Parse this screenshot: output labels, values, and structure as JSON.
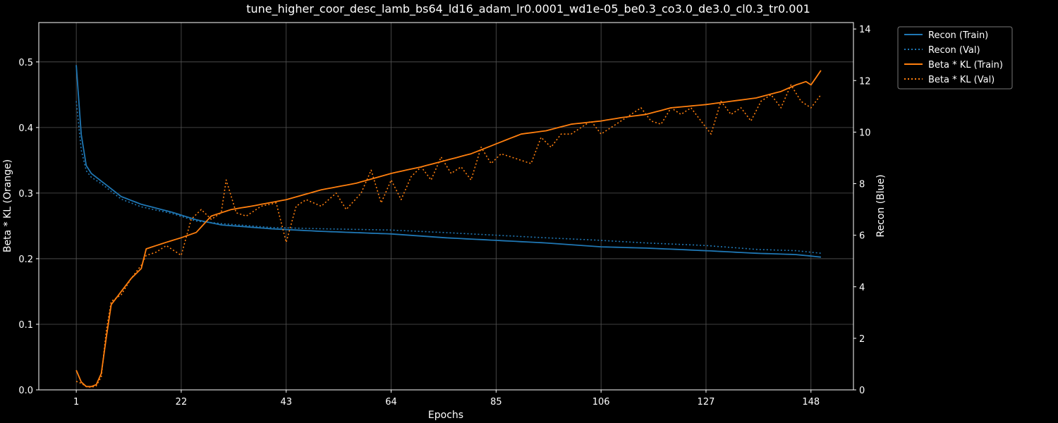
{
  "chart_data": {
    "type": "line",
    "title": "tune_higher_coor_desc_lamb_bs64_ld16_adam_lr0.0001_wd1e-05_be0.3_co3.0_de3.0_cl0.3_tr0.001",
    "xlabel": "Epochs",
    "ylabel_left": "Beta * KL (Orange)",
    "ylabel_right": "Recon (Blue)",
    "xlim": [
      -6.5,
      156.5
    ],
    "ylim_left": [
      0,
      0.56
    ],
    "ylim_right": [
      0,
      14.25
    ],
    "xticks": [
      1,
      22,
      43,
      64,
      85,
      106,
      127,
      148
    ],
    "yticks_left": [
      "0.0",
      "0.1",
      "0.2",
      "0.3",
      "0.4",
      "0.5"
    ],
    "yticks_left_values": [
      0,
      0.1,
      0.2,
      0.3,
      0.4,
      0.5
    ],
    "yticks_right": [
      "0",
      "2",
      "4",
      "6",
      "8",
      "10",
      "12",
      "14"
    ],
    "yticks_right_values": [
      0,
      2,
      4,
      6,
      8,
      10,
      12,
      14
    ],
    "grid": true,
    "legend_position": "outside-top-right",
    "colors": {
      "blue": "#1f77b4",
      "orange": "#ff7f0e",
      "background": "#000000",
      "grid": "#555555"
    },
    "series": [
      {
        "name": "Recon (Train)",
        "axis": "right",
        "color": "#1f77b4",
        "style": "solid",
        "keypoints": [
          [
            1,
            12.6
          ],
          [
            2,
            9.9
          ],
          [
            3,
            8.7
          ],
          [
            4,
            8.4
          ],
          [
            6,
            8.1
          ],
          [
            10,
            7.5
          ],
          [
            14,
            7.2
          ],
          [
            20,
            6.9
          ],
          [
            25,
            6.6
          ],
          [
            30,
            6.4
          ],
          [
            40,
            6.25
          ],
          [
            50,
            6.15
          ],
          [
            64,
            6.05
          ],
          [
            75,
            5.9
          ],
          [
            85,
            5.8
          ],
          [
            95,
            5.7
          ],
          [
            106,
            5.55
          ],
          [
            115,
            5.5
          ],
          [
            127,
            5.4
          ],
          [
            137,
            5.3
          ],
          [
            145,
            5.25
          ],
          [
            150,
            5.15
          ]
        ]
      },
      {
        "name": "Recon (Val)",
        "axis": "right",
        "color": "#1f77b4",
        "style": "dotted",
        "keypoints": [
          [
            1,
            11.2
          ],
          [
            2,
            9.3
          ],
          [
            3,
            8.5
          ],
          [
            4,
            8.25
          ],
          [
            6,
            8.0
          ],
          [
            10,
            7.4
          ],
          [
            14,
            7.1
          ],
          [
            20,
            6.85
          ],
          [
            25,
            6.55
          ],
          [
            30,
            6.45
          ],
          [
            40,
            6.3
          ],
          [
            50,
            6.25
          ],
          [
            64,
            6.2
          ],
          [
            75,
            6.1
          ],
          [
            85,
            6.0
          ],
          [
            95,
            5.9
          ],
          [
            106,
            5.8
          ],
          [
            115,
            5.7
          ],
          [
            127,
            5.6
          ],
          [
            137,
            5.45
          ],
          [
            145,
            5.4
          ],
          [
            150,
            5.3
          ]
        ]
      },
      {
        "name": "Beta * KL (Train)",
        "axis": "left",
        "color": "#ff7f0e",
        "style": "solid",
        "keypoints": [
          [
            1,
            0.03
          ],
          [
            2,
            0.012
          ],
          [
            3,
            0.005
          ],
          [
            4,
            0.005
          ],
          [
            5,
            0.008
          ],
          [
            6,
            0.025
          ],
          [
            7,
            0.08
          ],
          [
            8,
            0.13
          ],
          [
            9,
            0.14
          ],
          [
            10,
            0.15
          ],
          [
            12,
            0.17
          ],
          [
            14,
            0.185
          ],
          [
            15,
            0.215
          ],
          [
            17,
            0.22
          ],
          [
            19,
            0.225
          ],
          [
            22,
            0.232
          ],
          [
            25,
            0.24
          ],
          [
            28,
            0.265
          ],
          [
            32,
            0.275
          ],
          [
            36,
            0.28
          ],
          [
            43,
            0.29
          ],
          [
            50,
            0.305
          ],
          [
            57,
            0.315
          ],
          [
            64,
            0.33
          ],
          [
            70,
            0.34
          ],
          [
            75,
            0.35
          ],
          [
            80,
            0.36
          ],
          [
            85,
            0.375
          ],
          [
            90,
            0.39
          ],
          [
            95,
            0.395
          ],
          [
            100,
            0.405
          ],
          [
            106,
            0.41
          ],
          [
            110,
            0.415
          ],
          [
            115,
            0.42
          ],
          [
            120,
            0.43
          ],
          [
            127,
            0.435
          ],
          [
            132,
            0.44
          ],
          [
            137,
            0.445
          ],
          [
            142,
            0.455
          ],
          [
            145,
            0.465
          ],
          [
            147,
            0.47
          ],
          [
            148,
            0.465
          ],
          [
            150,
            0.487
          ]
        ]
      },
      {
        "name": "Beta * KL (Val)",
        "axis": "left",
        "color": "#ff7f0e",
        "style": "dotted",
        "keypoints": [
          [
            1,
            0.013
          ],
          [
            2,
            0.01
          ],
          [
            3,
            0.005
          ],
          [
            4,
            0.004
          ],
          [
            5,
            0.006
          ],
          [
            6,
            0.02
          ],
          [
            7,
            0.09
          ],
          [
            8,
            0.135
          ],
          [
            10,
            0.145
          ],
          [
            12,
            0.17
          ],
          [
            14,
            0.19
          ],
          [
            15,
            0.205
          ],
          [
            17,
            0.21
          ],
          [
            19,
            0.22
          ],
          [
            22,
            0.205
          ],
          [
            24,
            0.26
          ],
          [
            26,
            0.275
          ],
          [
            28,
            0.26
          ],
          [
            30,
            0.27
          ],
          [
            31,
            0.32
          ],
          [
            33,
            0.27
          ],
          [
            35,
            0.265
          ],
          [
            38,
            0.28
          ],
          [
            41,
            0.285
          ],
          [
            43,
            0.225
          ],
          [
            45,
            0.28
          ],
          [
            47,
            0.29
          ],
          [
            50,
            0.28
          ],
          [
            53,
            0.3
          ],
          [
            55,
            0.275
          ],
          [
            58,
            0.3
          ],
          [
            60,
            0.335
          ],
          [
            62,
            0.285
          ],
          [
            64,
            0.32
          ],
          [
            66,
            0.29
          ],
          [
            68,
            0.325
          ],
          [
            70,
            0.34
          ],
          [
            72,
            0.32
          ],
          [
            74,
            0.355
          ],
          [
            76,
            0.33
          ],
          [
            78,
            0.34
          ],
          [
            80,
            0.32
          ],
          [
            82,
            0.37
          ],
          [
            84,
            0.345
          ],
          [
            86,
            0.36
          ],
          [
            88,
            0.355
          ],
          [
            90,
            0.35
          ],
          [
            92,
            0.345
          ],
          [
            94,
            0.385
          ],
          [
            96,
            0.37
          ],
          [
            98,
            0.39
          ],
          [
            100,
            0.39
          ],
          [
            102,
            0.4
          ],
          [
            104,
            0.41
          ],
          [
            106,
            0.39
          ],
          [
            108,
            0.4
          ],
          [
            110,
            0.41
          ],
          [
            112,
            0.42
          ],
          [
            114,
            0.43
          ],
          [
            116,
            0.41
          ],
          [
            118,
            0.405
          ],
          [
            120,
            0.43
          ],
          [
            122,
            0.42
          ],
          [
            124,
            0.43
          ],
          [
            126,
            0.41
          ],
          [
            128,
            0.39
          ],
          [
            130,
            0.44
          ],
          [
            132,
            0.42
          ],
          [
            134,
            0.43
          ],
          [
            136,
            0.41
          ],
          [
            138,
            0.44
          ],
          [
            140,
            0.45
          ],
          [
            142,
            0.43
          ],
          [
            144,
            0.465
          ],
          [
            146,
            0.44
          ],
          [
            148,
            0.43
          ],
          [
            150,
            0.45
          ]
        ]
      }
    ]
  }
}
